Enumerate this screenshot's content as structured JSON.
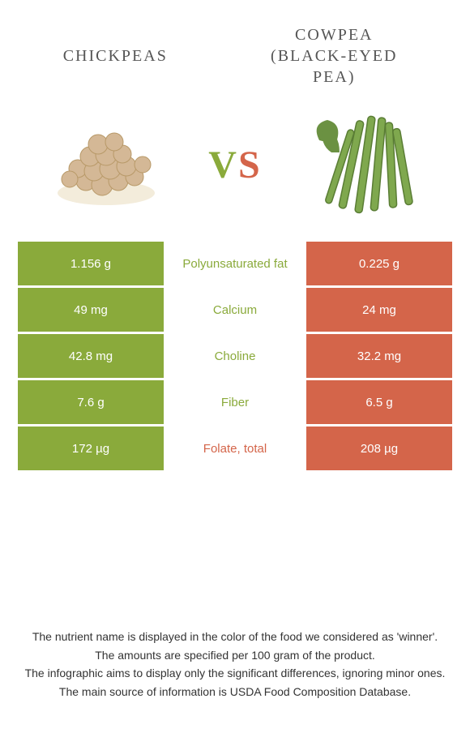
{
  "header": {
    "left_title": "CHICKPEAS",
    "right_title": "COWPEA (BLACK-EYED PEA)",
    "vs_v": "V",
    "vs_s": "S"
  },
  "colors": {
    "green": "#8aaa3b",
    "red": "#d4654a",
    "text": "#555555",
    "footnote": "#333333",
    "background": "#ffffff"
  },
  "nutrients": [
    {
      "name": "Polyunsaturated fat",
      "left_value": "1.156 g",
      "right_value": "0.225 g",
      "winner": "left"
    },
    {
      "name": "Calcium",
      "left_value": "49 mg",
      "right_value": "24 mg",
      "winner": "left"
    },
    {
      "name": "Choline",
      "left_value": "42.8 mg",
      "right_value": "32.2 mg",
      "winner": "left"
    },
    {
      "name": "Fiber",
      "left_value": "7.6 g",
      "right_value": "6.5 g",
      "winner": "left"
    },
    {
      "name": "Folate, total",
      "left_value": "172 µg",
      "right_value": "208 µg",
      "winner": "right"
    }
  ],
  "footnotes": {
    "line1": "The nutrient name is displayed in the color of the food we considered as 'winner'.",
    "line2": "The amounts are specified per 100 gram of the product.",
    "line3": "The infographic aims to display only the significant differences, ignoring minor ones.",
    "line4": "The main source of information is USDA Food Composition Database."
  }
}
